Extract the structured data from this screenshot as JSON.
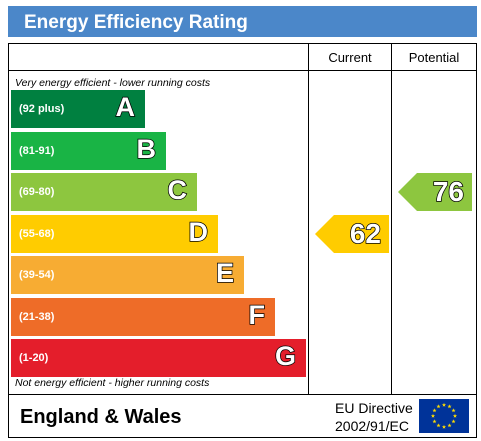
{
  "title": "Energy Efficiency Rating",
  "columns": {
    "current": "Current",
    "potential": "Potential"
  },
  "notes": {
    "top": "Very energy efficient - lower running costs",
    "bottom": "Not energy efficient - higher running costs"
  },
  "footer": {
    "country": "England & Wales",
    "directive_line1": "EU Directive",
    "directive_line2": "2002/91/EC",
    "flag_icon": "eu-flag-icon"
  },
  "chart_data": {
    "type": "bar",
    "title": "Energy Efficiency Rating",
    "categories": [
      "A",
      "B",
      "C",
      "D",
      "E",
      "F",
      "G"
    ],
    "bands": [
      {
        "letter": "A",
        "range": "(92 plus)",
        "color": "#008040"
      },
      {
        "letter": "B",
        "range": "(81-91)",
        "color": "#19b445"
      },
      {
        "letter": "C",
        "range": "(69-80)",
        "color": "#8dc63f"
      },
      {
        "letter": "D",
        "range": "(55-68)",
        "color": "#ffcc00"
      },
      {
        "letter": "E",
        "range": "(39-54)",
        "color": "#f7ac33"
      },
      {
        "letter": "F",
        "range": "(21-38)",
        "color": "#ee6c28"
      },
      {
        "letter": "G",
        "range": "(1-20)",
        "color": "#e41e2b"
      }
    ],
    "current": {
      "value": "62",
      "band": "D",
      "color": "#ffcc00"
    },
    "potential": {
      "value": "76",
      "band": "C",
      "color": "#8dc63f"
    }
  }
}
